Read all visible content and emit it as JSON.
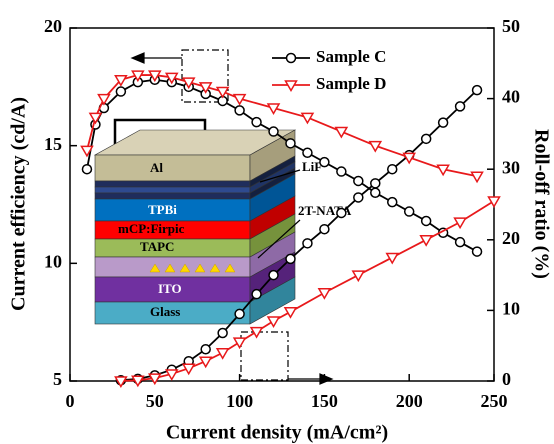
{
  "chart_data": {
    "type": "line",
    "xlabel": "Current density (mA/cm²)",
    "ylabel": "Current efficiency (cd/A)",
    "y2label": "Roll-off ratio (%)",
    "xlim": [
      0,
      250
    ],
    "xticks": [
      0,
      50,
      100,
      150,
      200,
      250
    ],
    "ylim": [
      5,
      20
    ],
    "yticks": [
      5,
      10,
      15,
      20
    ],
    "y2lim": [
      0,
      50
    ],
    "y2ticks": [
      0,
      10,
      20,
      30,
      40,
      50
    ],
    "legend": "upper right",
    "series": [
      {
        "name": "Sample C",
        "color": "#000000",
        "marker": "circle",
        "x": [
          10,
          15,
          20,
          30,
          40,
          50,
          60,
          70,
          80,
          90,
          100,
          110,
          120,
          130,
          140,
          150,
          160,
          170,
          180,
          190,
          200,
          210,
          220,
          230,
          240
        ],
        "values": [
          14.0,
          15.9,
          16.6,
          17.3,
          17.7,
          17.8,
          17.7,
          17.5,
          17.2,
          16.9,
          16.5,
          16.0,
          15.6,
          15.1,
          14.7,
          14.3,
          13.9,
          13.5,
          13.0,
          12.6,
          12.2,
          11.8,
          11.3,
          10.9,
          10.5
        ],
        "y2_x": [
          30,
          40,
          50,
          60,
          70,
          80,
          90,
          100,
          110,
          120,
          130,
          140,
          150,
          160,
          170,
          180,
          190,
          200,
          210,
          220,
          230,
          240
        ],
        "y2_values": [
          0.1,
          0.3,
          0.8,
          1.6,
          2.8,
          4.5,
          6.8,
          9.5,
          12.3,
          15.0,
          17.3,
          19.5,
          21.5,
          23.8,
          26.0,
          28.0,
          30.0,
          32.0,
          34.3,
          36.6,
          38.9,
          41.2
        ]
      },
      {
        "name": "Sample D",
        "color": "#e8191b",
        "marker": "triangle-down",
        "x": [
          10,
          15,
          20,
          30,
          40,
          50,
          60,
          70,
          80,
          90,
          100,
          120,
          140,
          160,
          180,
          200,
          220,
          240
        ],
        "values": [
          14.8,
          16.2,
          17.0,
          17.8,
          18.0,
          18.0,
          17.9,
          17.7,
          17.5,
          17.3,
          17.0,
          16.6,
          16.2,
          15.6,
          15.0,
          14.5,
          14.0,
          13.7
        ],
        "y2_x": [
          30,
          40,
          50,
          60,
          70,
          80,
          90,
          100,
          110,
          120,
          130,
          150,
          170,
          190,
          210,
          230,
          250
        ],
        "y2_values": [
          0,
          0.1,
          0.4,
          1.0,
          1.8,
          2.8,
          4.0,
          5.5,
          7.0,
          8.5,
          9.8,
          12.5,
          15.0,
          17.5,
          20.0,
          22.5,
          25.5
        ]
      }
    ]
  },
  "inset": {
    "layers": {
      "al": "Al",
      "lif": "LiF",
      "tpbi": "TPBi",
      "mcp": "mCP:Firpic",
      "tapc": "TAPC",
      "natа": "2T-NATA",
      "ito": "ITO",
      "glass": "Glass"
    }
  }
}
